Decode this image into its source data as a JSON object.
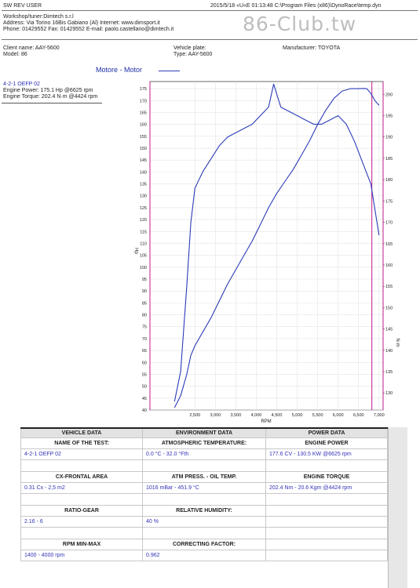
{
  "header": {
    "left": "SW REV     USER",
    "right": "2015/5/18 «U«E 01:13:48 C:\\Program Files (x86)\\DynoRace\\temp.dyn",
    "workshop": "Workshop/tuner:Dimtech s.r.l",
    "address": "Address: Via Torino 16Bis Gabiano (Al) Internet: www.dimsport.it",
    "phone": "Phone: 01429552 Fax: 01429552 E-mail: paolo.castellano@dimtech.it",
    "watermark": "86-Club.tw"
  },
  "vehicle": {
    "client": "Client name: AAY-5600",
    "model": "Model: 86",
    "plate": "Vehicle plate:",
    "type": "Type: AAY-5600",
    "manufacturer": "Manufacturer: TOYOTA"
  },
  "legend": {
    "label": "Motore - Motor",
    "color": "#2b3bb8"
  },
  "run": {
    "name": "4-2-1 OEFP 02",
    "power": "Engine Power: 175.1 Hp @6625 rpm",
    "torque": "Engine Torque: 202.4 N·m @4424 rpm"
  },
  "chart_data": {
    "type": "line",
    "xlabel": "RPM",
    "ylabel_left": "Hp",
    "ylabel_right": "N·m",
    "xlim": [
      1400,
      7100
    ],
    "ylim_left": [
      40,
      178
    ],
    "ylim_right": [
      126,
      203
    ],
    "x_ticks": [
      2500,
      3000,
      3500,
      4000,
      4500,
      5000,
      5500,
      6000,
      6500,
      7000
    ],
    "x_tick_labels": [
      "2,500",
      "3,000",
      "3,500",
      "4,000",
      "4,500",
      "5,000",
      "5,500",
      "6,000",
      "6,500",
      "7,000"
    ],
    "y_left_ticks": [
      40,
      45,
      50,
      55,
      60,
      65,
      70,
      75,
      80,
      85,
      90,
      95,
      100,
      105,
      110,
      115,
      120,
      125,
      130,
      135,
      140,
      145,
      150,
      155,
      160,
      165,
      170,
      175
    ],
    "y_right_ticks": [
      130,
      135,
      140,
      145,
      150,
      155,
      160,
      165,
      170,
      175,
      180,
      185,
      190,
      195,
      200
    ],
    "marker_rpm": 6825,
    "grid": true,
    "line_color": "#2b3bb8",
    "marker_color": "#c0188a",
    "series": [
      {
        "name": "Engine Power",
        "axis": "left",
        "x": [
          2000,
          2150,
          2300,
          2400,
          2500,
          2700,
          2900,
          3100,
          3300,
          3500,
          3700,
          3900,
          4100,
          4300,
          4500,
          4700,
          4900,
          5100,
          5300,
          5500,
          5700,
          5900,
          6100,
          6300,
          6500,
          6625,
          6700,
          6800,
          6900,
          7000
        ],
        "y": [
          41,
          46,
          55,
          63,
          67,
          73,
          79,
          86,
          93,
          99,
          105,
          111,
          118,
          125,
          131,
          136,
          141,
          147,
          153,
          160,
          166,
          171,
          174,
          175,
          175,
          175.1,
          175,
          173,
          170,
          168
        ]
      },
      {
        "name": "Engine Torque",
        "axis": "right",
        "x": [
          2000,
          2150,
          2300,
          2400,
          2500,
          2700,
          2900,
          3100,
          3300,
          3500,
          3700,
          3900,
          4100,
          4300,
          4424,
          4600,
          4800,
          5000,
          5200,
          5400,
          5600,
          5800,
          6000,
          6200,
          6400,
          6600,
          6800,
          7000
        ],
        "y": [
          128,
          135,
          155,
          170,
          178,
          182,
          185,
          188,
          190,
          191,
          192,
          193,
          195,
          197,
          202.4,
          197,
          196,
          195,
          194,
          193,
          193,
          194,
          195,
          193,
          189,
          184,
          179,
          167
        ]
      }
    ]
  },
  "table": {
    "headers": [
      "VEHICLE DATA",
      "ENVIRONMENT DATA",
      "POWER DATA"
    ],
    "rows": [
      {
        "labels": [
          "NAME OF THE TEST:",
          "ATMOSPHERIC TEMPERATURE:",
          "ENGINE POWER"
        ],
        "values": [
          "4-2-1 OEFP 02",
          "0.0 °C - 32.0 °Fth",
          "177.6 CV - 130.5 KW  @6625 rpm"
        ]
      },
      {
        "labels": [
          "CX-FRONTAL AREA",
          "ATM PRESS. - OIL TEMP.",
          "ENGINE TORQUE"
        ],
        "values": [
          "0.31 Cx - 2,5 m2",
          "1016 mBar - 451.9 °C",
          "202.4 Nm - 20.6 Kgm  @4424 rpm"
        ]
      },
      {
        "labels": [
          "RATIO-GEAR",
          "RELATIVE HUMIDITY:",
          ""
        ],
        "values": [
          "2.16 - 6",
          "40 %",
          ""
        ]
      },
      {
        "labels": [
          "RPM MIN-MAX",
          "CORRECTING FACTOR:",
          ""
        ],
        "values": [
          "1400 - 4000 rpm",
          "0.962",
          ""
        ]
      }
    ]
  }
}
